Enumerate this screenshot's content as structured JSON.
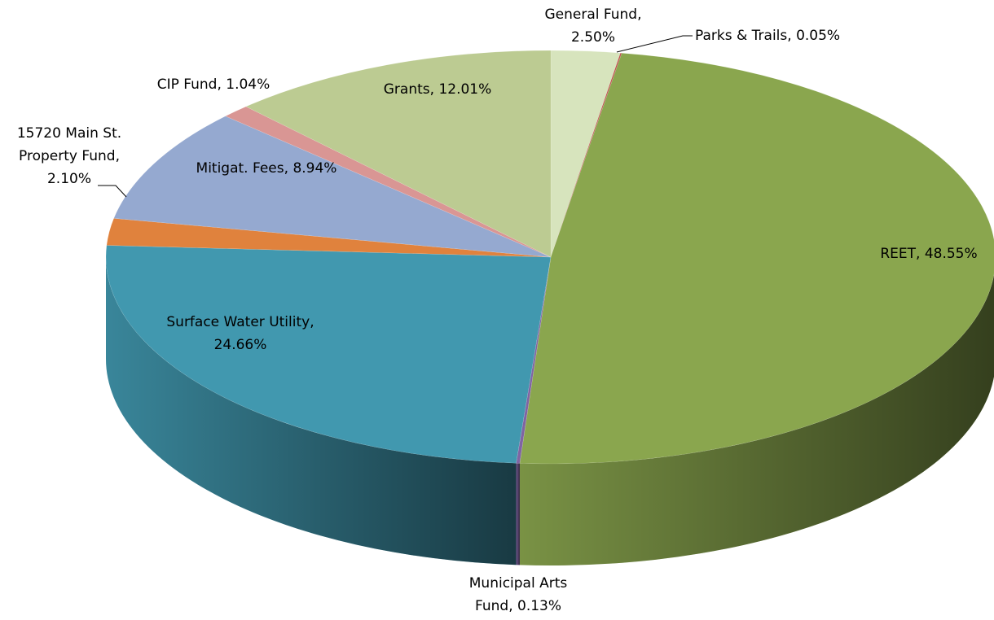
{
  "chart_data": {
    "type": "pie3d",
    "categories": [
      "General Fund",
      "Parks & Trails",
      "REET",
      "Municipal Arts Fund",
      "Surface Water Utility",
      "15720 Main St. Property Fund",
      "Mitigat. Fees",
      "CIP Fund",
      "Grants"
    ],
    "values": [
      2.5,
      0.05,
      48.55,
      0.13,
      24.66,
      2.1,
      8.94,
      1.04,
      12.01
    ],
    "value_labels": [
      "2.50%",
      "0.05%",
      "48.55%",
      "0.13%",
      "24.66%",
      "2.10%",
      "8.94%",
      "1.04%",
      "12.01%"
    ],
    "colors": [
      "#d7e4bd",
      "#c0504d",
      "#8aa64e",
      "#8064a2",
      "#4198af",
      "#e0823d",
      "#95a9d0",
      "#d99694",
      "#bccb92"
    ]
  }
}
